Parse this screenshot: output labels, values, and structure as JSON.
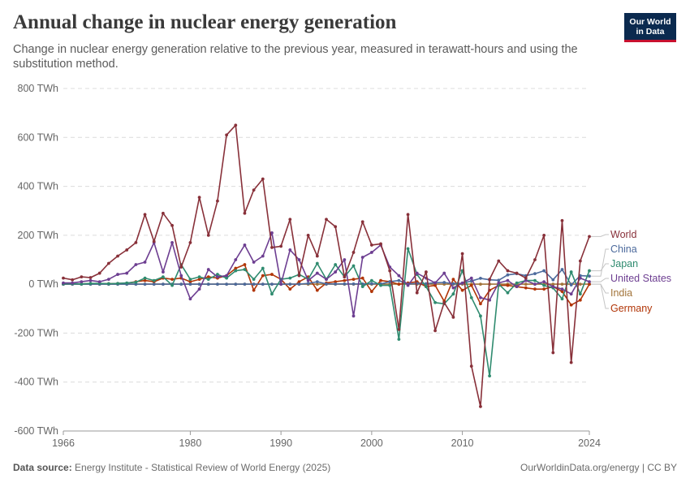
{
  "header": {
    "title": "Annual change in nuclear energy generation",
    "subtitle": "Change in nuclear energy generation relative to the previous year, measured in terawatt-hours and using the substitution method.",
    "logo_line1": "Our World",
    "logo_line2": "in Data"
  },
  "footer": {
    "source_label": "Data source:",
    "source_text": "Energy Institute - Statistical Review of World Energy (2025)",
    "url": "OurWorldinData.org/energy",
    "license": "CC BY"
  },
  "chart_data": {
    "type": "line",
    "title": "Annual change in nuclear energy generation",
    "ylabel": "",
    "xlabel": "",
    "unit": "TWh",
    "ylim": [
      -600,
      800
    ],
    "xlim": [
      1966,
      2024
    ],
    "y_ticks": [
      -600,
      -400,
      -200,
      0,
      200,
      400,
      600,
      800
    ],
    "y_tick_labels": [
      "-600 TWh",
      "-400 TWh",
      "-200 TWh",
      "0 TWh",
      "200 TWh",
      "400 TWh",
      "600 TWh",
      "800 TWh"
    ],
    "x_ticks": [
      1966,
      1980,
      1990,
      2000,
      2010,
      2024
    ],
    "x_tick_labels": [
      "1966",
      "1980",
      "1990",
      "2000",
      "2010",
      "2024"
    ],
    "grid": "horizontal dashed",
    "legend": "right, line-end labels",
    "x": [
      1966,
      1967,
      1968,
      1969,
      1970,
      1971,
      1972,
      1973,
      1974,
      1975,
      1976,
      1977,
      1978,
      1979,
      1980,
      1981,
      1982,
      1983,
      1984,
      1985,
      1986,
      1987,
      1988,
      1989,
      1990,
      1991,
      1992,
      1993,
      1994,
      1995,
      1996,
      1997,
      1998,
      1999,
      2000,
      2001,
      2002,
      2003,
      2004,
      2005,
      2006,
      2007,
      2008,
      2009,
      2010,
      2011,
      2012,
      2013,
      2014,
      2015,
      2016,
      2017,
      2018,
      2019,
      2020,
      2021,
      2022,
      2023,
      2024
    ],
    "series": [
      {
        "name": "World",
        "color": "#883039",
        "values": [
          25,
          18,
          30,
          27,
          45,
          85,
          115,
          140,
          170,
          285,
          175,
          290,
          240,
          70,
          170,
          355,
          200,
          340,
          610,
          650,
          290,
          385,
          430,
          150,
          155,
          265,
          35,
          200,
          115,
          265,
          235,
          30,
          130,
          255,
          160,
          165,
          55,
          -185,
          285,
          -35,
          50,
          -190,
          -75,
          -135,
          125,
          -335,
          -500,
          20,
          95,
          55,
          45,
          25,
          100,
          200,
          -280,
          260,
          -320,
          95,
          195
        ]
      },
      {
        "name": "China",
        "color": "#4c6a9c",
        "values": [
          0,
          0,
          0,
          0,
          0,
          0,
          0,
          0,
          0,
          0,
          0,
          0,
          0,
          0,
          0,
          0,
          0,
          0,
          0,
          0,
          0,
          0,
          0,
          0,
          0,
          0,
          0,
          3,
          10,
          1,
          1,
          1,
          1,
          1,
          2,
          1,
          10,
          15,
          0,
          3,
          2,
          6,
          7,
          2,
          4,
          13,
          24,
          18,
          16,
          38,
          43,
          35,
          43,
          55,
          18,
          60,
          -3,
          35,
          33
        ]
      },
      {
        "name": "Japan",
        "color": "#2f8b6f",
        "values": [
          1,
          2,
          1,
          3,
          3,
          2,
          3,
          5,
          8,
          25,
          15,
          30,
          -5,
          80,
          20,
          30,
          20,
          40,
          25,
          55,
          60,
          20,
          65,
          -40,
          20,
          25,
          40,
          20,
          85,
          20,
          80,
          30,
          75,
          -10,
          15,
          -5,
          -5,
          -225,
          145,
          40,
          -10,
          -75,
          -80,
          -40,
          55,
          -55,
          -130,
          -375,
          0,
          -35,
          5,
          15,
          15,
          -5,
          -15,
          -60,
          50,
          -40,
          55
        ]
      },
      {
        "name": "United States",
        "color": "#6d3e91",
        "values": [
          5,
          5,
          10,
          15,
          10,
          20,
          40,
          45,
          80,
          90,
          170,
          50,
          170,
          35,
          -60,
          -20,
          60,
          30,
          35,
          100,
          160,
          90,
          115,
          210,
          0,
          140,
          100,
          15,
          45,
          20,
          50,
          100,
          -130,
          110,
          130,
          160,
          70,
          35,
          -5,
          45,
          25,
          5,
          45,
          -15,
          5,
          25,
          -55,
          -65,
          5,
          15,
          -10,
          15,
          0,
          10,
          -10,
          -20,
          -40,
          25,
          10
        ]
      },
      {
        "name": "India",
        "color": "#a2743a",
        "values": [
          0,
          0,
          0,
          0,
          0,
          0,
          0,
          0,
          0,
          0,
          0,
          0,
          0,
          0,
          0,
          0,
          0,
          0,
          0,
          0,
          0,
          0,
          0,
          0,
          0,
          0,
          0,
          0,
          0,
          0,
          0,
          0,
          0,
          0,
          0,
          0,
          0,
          0,
          0,
          0,
          0,
          0,
          0,
          0,
          0,
          0,
          0,
          0,
          0,
          0,
          0,
          0,
          0,
          0,
          0,
          0,
          0,
          0,
          0
        ]
      },
      {
        "name": "Germany",
        "color": "#b13507",
        "values": [
          0,
          1,
          1,
          2,
          2,
          2,
          3,
          4,
          10,
          15,
          10,
          25,
          20,
          25,
          10,
          20,
          30,
          25,
          35,
          65,
          80,
          -25,
          35,
          40,
          20,
          -20,
          10,
          30,
          -25,
          5,
          10,
          15,
          20,
          25,
          -30,
          15,
          10,
          0,
          5,
          10,
          -10,
          -5,
          -70,
          20,
          -25,
          -5,
          -80,
          -25,
          -5,
          -5,
          -10,
          -15,
          -20,
          -20,
          -10,
          -30,
          -85,
          -65,
          0
        ]
      }
    ]
  }
}
